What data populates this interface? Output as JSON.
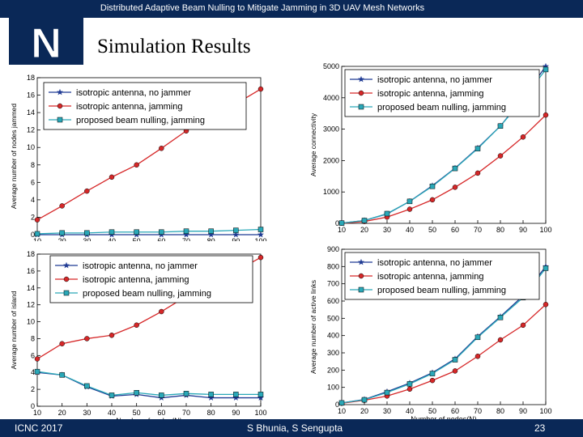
{
  "header": {
    "title": "Distributed Adaptive Beam Nulling to Mitigate Jamming in 3D UAV Mesh Networks"
  },
  "logo": {
    "letter": "N"
  },
  "slide": {
    "title": "Simulation Results"
  },
  "footer": {
    "left": "ICNC 2017",
    "center": "S Bhunia, S Sengupta",
    "right": "23"
  },
  "colors": {
    "navy": "#0a2857",
    "series1": "#1f3a93",
    "series2": "#d62728",
    "series3": "#2aa8b8"
  },
  "chart_data": [
    {
      "type": "line",
      "title": "",
      "xlabel": "",
      "ylabel": "Average number of nodes jammed",
      "xlim": [
        10,
        100
      ],
      "ylim": [
        0,
        18
      ],
      "xticks": [
        "10",
        "20",
        "30",
        "40",
        "50",
        "60",
        "70",
        "80",
        "90",
        "100"
      ],
      "yticks": [
        "0",
        "2",
        "4",
        "6",
        "8",
        "10",
        "12",
        "14",
        "16",
        "18"
      ],
      "x": [
        10,
        20,
        30,
        40,
        50,
        60,
        70,
        80,
        90,
        100
      ],
      "legend": "top-left",
      "series": [
        {
          "name": "isotropic antenna, no jammer",
          "values": [
            0,
            0,
            0,
            0,
            0,
            0,
            0,
            0,
            0,
            0
          ]
        },
        {
          "name": "isotropic antenna, jamming",
          "values": [
            1.7,
            3.3,
            5.0,
            6.6,
            8.0,
            9.9,
            11.9,
            13.5,
            15.0,
            16.7
          ]
        },
        {
          "name": "proposed beam nulling, jamming",
          "values": [
            0.1,
            0.2,
            0.2,
            0.3,
            0.3,
            0.3,
            0.4,
            0.4,
            0.5,
            0.6
          ]
        }
      ]
    },
    {
      "type": "line",
      "title": "",
      "xlabel": "",
      "ylabel": "Average connectivity",
      "xlim": [
        10,
        100
      ],
      "ylim": [
        0,
        5000
      ],
      "xticks": [
        "10",
        "20",
        "30",
        "40",
        "50",
        "60",
        "70",
        "80",
        "90",
        "100"
      ],
      "yticks": [
        "0",
        "1000",
        "2000",
        "3000",
        "4000",
        "5000"
      ],
      "x": [
        10,
        20,
        30,
        40,
        50,
        60,
        70,
        80,
        90,
        100
      ],
      "legend": "top-right",
      "series": [
        {
          "name": "isotropic antenna, no jammer",
          "values": [
            10,
            90,
            300,
            700,
            1200,
            1760,
            2400,
            3100,
            4000,
            5000
          ]
        },
        {
          "name": "isotropic antenna, jamming",
          "values": [
            5,
            60,
            200,
            450,
            750,
            1150,
            1600,
            2150,
            2750,
            3450
          ]
        },
        {
          "name": "proposed beam nulling, jamming",
          "values": [
            10,
            90,
            310,
            700,
            1180,
            1750,
            2380,
            3100,
            3950,
            4900
          ]
        }
      ]
    },
    {
      "type": "line",
      "title": "",
      "xlabel": "Number of nodes(N)",
      "ylabel": "Average number of island",
      "xlim": [
        10,
        100
      ],
      "ylim": [
        0,
        18
      ],
      "xticks": [
        "10",
        "20",
        "30",
        "40",
        "50",
        "60",
        "70",
        "80",
        "90",
        "100"
      ],
      "yticks": [
        "0",
        "2",
        "4",
        "6",
        "8",
        "10",
        "12",
        "14",
        "16",
        "18"
      ],
      "x": [
        10,
        20,
        30,
        40,
        50,
        60,
        70,
        80,
        90,
        100
      ],
      "legend": "top-right",
      "series": [
        {
          "name": "isotropic antenna, no jammer",
          "values": [
            4.0,
            3.7,
            2.3,
            1.2,
            1.4,
            1.0,
            1.3,
            1.0,
            1.0,
            1.0
          ]
        },
        {
          "name": "isotropic antenna, jamming",
          "values": [
            5.6,
            7.4,
            8.0,
            8.4,
            9.6,
            11.2,
            13.0,
            14.5,
            16.0,
            17.6
          ]
        },
        {
          "name": "proposed beam nulling, jamming",
          "values": [
            4.1,
            3.7,
            2.4,
            1.3,
            1.6,
            1.3,
            1.5,
            1.4,
            1.4,
            1.4
          ]
        }
      ]
    },
    {
      "type": "line",
      "title": "",
      "xlabel": "Number of nodes(N)",
      "ylabel": "Average number of active links",
      "xlim": [
        10,
        100
      ],
      "ylim": [
        0,
        900
      ],
      "xticks": [
        "10",
        "20",
        "30",
        "40",
        "50",
        "60",
        "70",
        "80",
        "90",
        "100"
      ],
      "yticks": [
        "0",
        "100",
        "200",
        "300",
        "400",
        "500",
        "600",
        "700",
        "800",
        "900"
      ],
      "x": [
        10,
        20,
        30,
        40,
        50,
        60,
        70,
        80,
        90,
        100
      ],
      "legend": "top-right",
      "series": [
        {
          "name": "isotropic antenna, no jammer",
          "values": [
            10,
            30,
            75,
            125,
            185,
            265,
            395,
            510,
            630,
            800
          ]
        },
        {
          "name": "isotropic antenna, jamming",
          "values": [
            8,
            25,
            50,
            90,
            140,
            195,
            280,
            375,
            460,
            580
          ]
        },
        {
          "name": "proposed beam nulling, jamming",
          "values": [
            10,
            28,
            70,
            120,
            180,
            260,
            390,
            505,
            620,
            790
          ]
        }
      ]
    }
  ]
}
